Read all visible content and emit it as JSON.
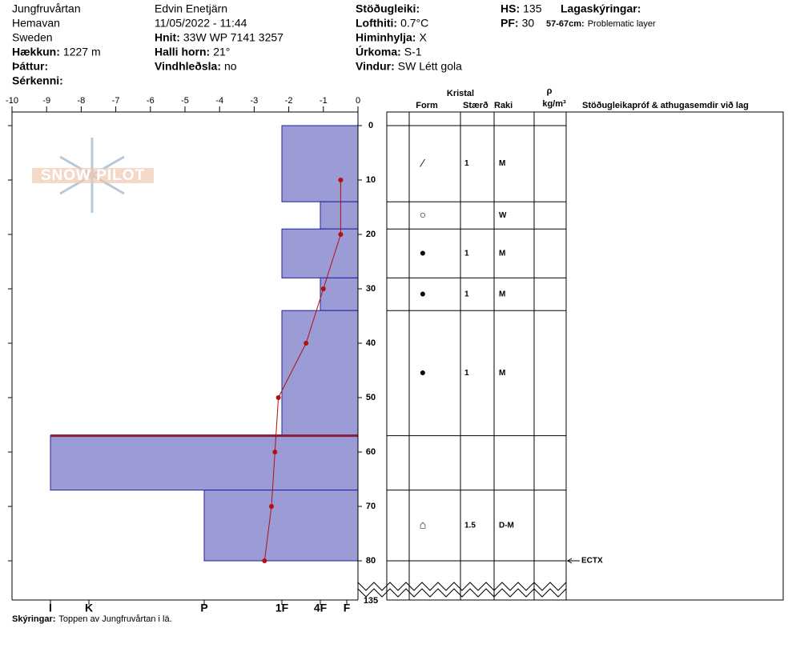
{
  "header": {
    "columns": [
      [
        {
          "value": "Jungfruvårtan"
        },
        {
          "value": "Hemavan"
        },
        {
          "value": "Sweden"
        },
        {
          "label": "Hækkun:",
          "value": "1227 m"
        },
        {
          "label": "Þáttur:"
        },
        {
          "label": "Sérkenni:"
        }
      ],
      [
        {
          "value": "Edvin Enetjärn"
        },
        {
          "value": "11/05/2022 - 11:44"
        },
        {
          "label": "Hnit:",
          "value": "33W WP 7141 3257"
        },
        {
          "label": "Halli horn:",
          "value": "21°"
        },
        {
          "label": "Vindhleðsla:",
          "value": "no"
        }
      ],
      [
        {
          "label": "Stöðugleiki:"
        },
        {
          "label": "Lofthiti:",
          "value": "0.7°C"
        },
        {
          "label": "Himinhylja:",
          "value": "X"
        },
        {
          "label": "Úrkoma:",
          "value": "S-1"
        },
        {
          "label": "Vindur:",
          "value": "SW Létt gola"
        }
      ],
      [
        {
          "label": "HS:",
          "value": 135
        },
        {
          "label": "PF:",
          "value": 30
        }
      ]
    ],
    "legend": {
      "title": "Lagaskýringar:",
      "items": [
        {
          "label": "57-67cm:",
          "value": "Problematic layer"
        }
      ]
    }
  },
  "logo": "SNOW PILOT",
  "profile": {
    "temp_ticks": [
      -10,
      -9,
      -8,
      -7,
      -6,
      -5,
      -4,
      -3,
      -2,
      -1,
      0
    ],
    "depth_ticks": [
      0,
      10,
      20,
      30,
      40,
      50,
      60,
      70,
      80
    ],
    "total_depth": 135,
    "hardness_axis": [
      "I",
      "K",
      "P",
      "1F",
      "4F",
      "F"
    ],
    "layers": [
      {
        "top": 0,
        "bottom": 14,
        "hardness": "1F",
        "form": "⁄",
        "size": 1,
        "moisture": "M"
      },
      {
        "top": 14,
        "bottom": 19,
        "hardness": "4F",
        "form": "○",
        "size": null,
        "moisture": "W"
      },
      {
        "top": 19,
        "bottom": 28,
        "hardness": "1F",
        "form": "●",
        "size": 1,
        "moisture": "M"
      },
      {
        "top": 28,
        "bottom": 34,
        "hardness": "4F",
        "form": "●",
        "size": 1,
        "moisture": "M"
      },
      {
        "top": 34,
        "bottom": 57,
        "hardness": "1F",
        "form": "●",
        "size": 1,
        "moisture": "M"
      },
      {
        "top": 57,
        "bottom": 67,
        "hardness": "I",
        "form": null,
        "size": null,
        "moisture": null,
        "problematic": true
      },
      {
        "top": 67,
        "bottom": 80,
        "hardness": "P",
        "form": "⌂",
        "size": 1.5,
        "moisture": "D-M"
      }
    ],
    "temperatures": {
      "depth": [
        10,
        20,
        30,
        40,
        50,
        60,
        70,
        80
      ],
      "temp": [
        -0.5,
        -0.5,
        -1,
        -1.5,
        -2.3,
        -2.4,
        -2.5,
        -2.7
      ]
    },
    "tests": [
      {
        "depth": 80,
        "label": "ECTX"
      }
    ]
  },
  "table_header": {
    "crystal": "Kristal",
    "form": "Form",
    "size": "Stærð",
    "moisture": "Raki",
    "density": "ρ",
    "density_unit": "kg/m³",
    "comments": "Stöðugleikapróf & athugasemdir við lag"
  },
  "footer": {
    "label": "Skýringar:",
    "value": "Toppen av Jungfruvårtan i lä."
  }
}
